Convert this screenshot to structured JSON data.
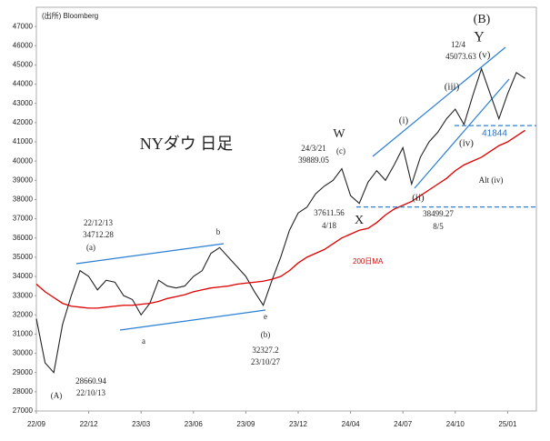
{
  "chart_data": {
    "type": "line",
    "title": "NYダウ 日足",
    "source": "(出所) Bloomberg",
    "categories": [
      "22/09",
      null,
      null,
      null,
      null,
      null,
      "22/12",
      null,
      null,
      null,
      null,
      null,
      "23/03",
      null,
      null,
      null,
      null,
      null,
      "23/06",
      null,
      null,
      null,
      null,
      null,
      "23/09",
      null,
      null,
      null,
      null,
      null,
      "23/12",
      null,
      null,
      null,
      null,
      null,
      "24/04",
      null,
      null,
      null,
      null,
      null,
      "24/07",
      null,
      null,
      null,
      null,
      null,
      "24/10",
      null,
      null,
      null,
      null,
      null,
      "25/01",
      null,
      null
    ],
    "series": [
      {
        "color": "#222222",
        "values": [
          31800,
          29500,
          29000,
          31500,
          33000,
          34300,
          34000,
          33300,
          33800,
          33700,
          33000,
          32800,
          32000,
          32600,
          33800,
          33500,
          33400,
          33500,
          34000,
          34300,
          35200,
          35500,
          35000,
          34500,
          34000,
          33200,
          32500,
          33800,
          35000,
          36400,
          37300,
          37600,
          38300,
          38700,
          39000,
          39600,
          38200,
          37800,
          38900,
          39500,
          39000,
          39800,
          40700,
          38800,
          40200,
          41000,
          41500,
          42200,
          42700,
          41900,
          43400,
          44800,
          43500,
          42200,
          43500,
          44600,
          44300
        ]
      },
      {
        "name": "200日MA",
        "color": "#e00000",
        "values": [
          33600,
          33200,
          32900,
          32600,
          32450,
          32400,
          32350,
          32350,
          32400,
          32450,
          32500,
          32500,
          32550,
          32600,
          32700,
          32850,
          32950,
          33050,
          33200,
          33300,
          33400,
          33450,
          33500,
          33600,
          33650,
          33700,
          33750,
          33850,
          34000,
          34300,
          34700,
          35000,
          35200,
          35400,
          35700,
          36000,
          36200,
          36400,
          36500,
          36800,
          37200,
          37500,
          37700,
          37900,
          38200,
          38500,
          38800,
          39100,
          39500,
          39800,
          40000,
          40200,
          40500,
          40800,
          41000,
          41300,
          41600
        ]
      }
    ],
    "hlines": [
      41844,
      37611.56
    ],
    "annotations": [
      "22/12/13",
      "34712.28",
      "(a)",
      "b",
      "a",
      "e",
      "(b)",
      "32327.2",
      "23/10/27",
      "28660.94",
      "22/10/13",
      "(A)",
      "24/3/21",
      "39889.05",
      "W",
      "(c)",
      "X",
      "37611.56",
      "4/18",
      "(i)",
      "(ii)",
      "38499.27",
      "8/5",
      "(iii)",
      "(iv)",
      "12/4",
      "45073.63",
      "(v)",
      "Y",
      "(B)",
      "Alt (iv)"
    ],
    "ylim": [
      27000,
      48000
    ],
    "yticks": [
      27000,
      28000,
      29000,
      30000,
      31000,
      32000,
      33000,
      34000,
      35000,
      36000,
      37000,
      38000,
      39000,
      40000,
      41000,
      42000,
      43000,
      44000,
      45000,
      46000,
      47000
    ],
    "grid": false
  }
}
